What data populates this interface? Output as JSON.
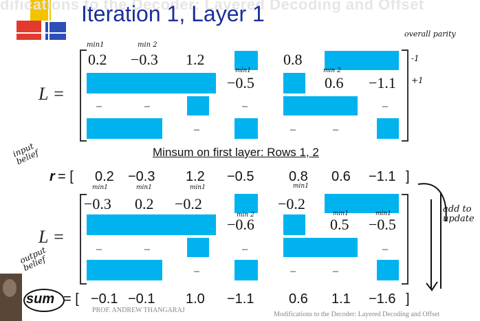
{
  "header": {
    "overlay_title": "difications to the Decoder: Layered Decoding and Offset",
    "slide_title": "Iteration 1, Layer 1"
  },
  "matrix1": {
    "label": "L =",
    "row1": [
      "0.2",
      "−0.3",
      "1.2",
      "0.8"
    ],
    "row2": [
      "−0.5",
      "0.6",
      "−1.1"
    ],
    "dashes": "–"
  },
  "subtitle": "Minsum on first layer: Rows 1, 2",
  "r_vector": {
    "label": "r",
    "equals": "= [",
    "values": [
      "0.2",
      "−0.3",
      "1.2",
      "−0.5",
      "0.8",
      "0.6",
      "−1.1"
    ],
    "close": "]"
  },
  "matrix2": {
    "label": "L =",
    "row1": [
      "−0.3",
      "0.2",
      "−0.2",
      "−0.2"
    ],
    "row2": [
      "−0.6",
      "0.5",
      "−0.5"
    ]
  },
  "sum_vector": {
    "label": "sum",
    "equals": "= [",
    "values": [
      "−0.1",
      "−0.1",
      "1.0",
      "−1.1",
      "0.6",
      "1.1",
      "−1.6"
    ],
    "close": "]"
  },
  "annotations": {
    "min1": "min1",
    "min2": "min 2",
    "overall_parity": "overall parity",
    "minus_one": "-1",
    "plus_one": "+1",
    "input_belief": "input belief",
    "output_belief": "output belief",
    "add_to_update": "add to update"
  },
  "footer": {
    "left": "PROF. ANDREW THANGARAJ",
    "right": "Modifications to the Decoder: Layered Decoding and Offset"
  }
}
